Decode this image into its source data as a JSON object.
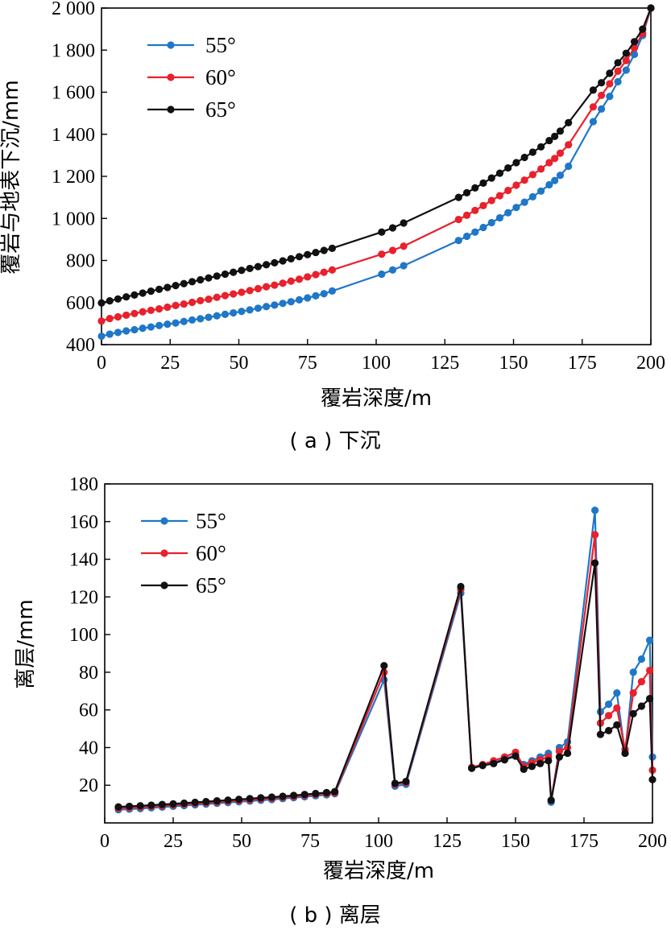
{
  "chart_data": [
    {
      "type": "line",
      "caption": "( a ) 下沉",
      "xlabel": "覆岩深度/m",
      "ylabel": "覆岩与地表下沉/mm",
      "xlim": [
        0,
        200
      ],
      "ylim": [
        400,
        2000
      ],
      "xticks": [
        0,
        25,
        50,
        75,
        100,
        125,
        150,
        175,
        200
      ],
      "xtick_labels": [
        "0",
        "25",
        "50",
        "75",
        "100",
        "125",
        "150",
        "175",
        "200"
      ],
      "yticks": [
        400,
        600,
        800,
        1000,
        1200,
        1400,
        1600,
        1800,
        2000
      ],
      "ytick_labels": [
        "400",
        "600",
        "800",
        "1 000",
        "1 200",
        "1 400",
        "1 600",
        "1 800",
        "2 000"
      ],
      "legend_position": "top-left",
      "grid": false,
      "series": [
        {
          "name": "55°",
          "color": "#1f77c8",
          "x": [
            0,
            3,
            6,
            9,
            12,
            15,
            18,
            21,
            24,
            27,
            30,
            33,
            36,
            39,
            42,
            45,
            48,
            51,
            54,
            57,
            60,
            63,
            66,
            69,
            72,
            75,
            78,
            81,
            84,
            102,
            106,
            110,
            130,
            133,
            136,
            139,
            142,
            145,
            148,
            151,
            154,
            157,
            160,
            163,
            165,
            167,
            170,
            179,
            182,
            185,
            188,
            191,
            194,
            197,
            200
          ],
          "y": [
            440,
            450,
            458,
            465,
            471,
            478,
            484,
            491,
            497,
            503,
            510,
            517,
            523,
            530,
            537,
            544,
            551,
            558,
            565,
            573,
            581,
            588,
            596,
            604,
            613,
            622,
            632,
            642,
            655,
            735,
            755,
            775,
            895,
            915,
            935,
            957,
            980,
            1003,
            1027,
            1052,
            1077,
            1103,
            1130,
            1160,
            1180,
            1205,
            1248,
            1460,
            1520,
            1580,
            1650,
            1705,
            1780,
            1870,
            2000
          ]
        },
        {
          "name": "60°",
          "color": "#e8212c",
          "x": [
            0,
            3,
            6,
            9,
            12,
            15,
            18,
            21,
            24,
            27,
            30,
            33,
            36,
            39,
            42,
            45,
            48,
            51,
            54,
            57,
            60,
            63,
            66,
            69,
            72,
            75,
            78,
            81,
            84,
            102,
            106,
            110,
            130,
            133,
            136,
            139,
            142,
            145,
            148,
            151,
            154,
            157,
            160,
            163,
            165,
            167,
            170,
            179,
            182,
            185,
            188,
            191,
            194,
            197,
            200
          ],
          "y": [
            512,
            524,
            532,
            540,
            548,
            556,
            563,
            570,
            578,
            586,
            593,
            601,
            609,
            616,
            625,
            633,
            641,
            649,
            657,
            666,
            675,
            683,
            692,
            702,
            711,
            722,
            733,
            744,
            755,
            830,
            848,
            868,
            995,
            1015,
            1038,
            1061,
            1085,
            1108,
            1133,
            1158,
            1182,
            1208,
            1235,
            1265,
            1285,
            1310,
            1350,
            1530,
            1585,
            1640,
            1700,
            1750,
            1810,
            1880,
            2000
          ]
        },
        {
          "name": "65°",
          "color": "#111111",
          "x": [
            0,
            3,
            6,
            9,
            12,
            15,
            18,
            21,
            24,
            27,
            30,
            33,
            36,
            39,
            42,
            45,
            48,
            51,
            54,
            57,
            60,
            63,
            66,
            69,
            72,
            75,
            78,
            81,
            84,
            102,
            106,
            110,
            130,
            133,
            136,
            139,
            142,
            145,
            148,
            151,
            154,
            157,
            160,
            163,
            165,
            167,
            170,
            179,
            182,
            185,
            188,
            191,
            194,
            197,
            200
          ],
          "y": [
            598,
            608,
            617,
            627,
            636,
            645,
            654,
            663,
            672,
            681,
            690,
            699,
            708,
            717,
            726,
            735,
            744,
            753,
            762,
            771,
            780,
            789,
            798,
            808,
            818,
            828,
            838,
            848,
            858,
            935,
            955,
            978,
            1100,
            1122,
            1145,
            1168,
            1192,
            1215,
            1240,
            1265,
            1290,
            1315,
            1340,
            1370,
            1390,
            1415,
            1455,
            1610,
            1645,
            1690,
            1740,
            1785,
            1840,
            1900,
            2000
          ]
        }
      ]
    },
    {
      "type": "line",
      "caption": "( b ) 离层",
      "xlabel": "覆岩深度/m",
      "ylabel": "离层/mm",
      "xlim": [
        0,
        200
      ],
      "ylim": [
        0,
        180
      ],
      "xticks": [
        0,
        25,
        50,
        75,
        100,
        125,
        150,
        175,
        200
      ],
      "xtick_labels": [
        "0",
        "25",
        "50",
        "75",
        "100",
        "125",
        "150",
        "175",
        "200"
      ],
      "yticks": [
        20,
        40,
        60,
        80,
        100,
        120,
        140,
        160,
        180
      ],
      "ytick_labels": [
        "20",
        "40",
        "60",
        "80",
        "100",
        "120",
        "140",
        "160",
        "180"
      ],
      "legend_position": "top-left",
      "grid": false,
      "series": [
        {
          "name": "55°",
          "color": "#1f77c8",
          "x": [
            5,
            9,
            13,
            17,
            21,
            25,
            29,
            33,
            37,
            41,
            45,
            49,
            53,
            57,
            61,
            65,
            69,
            73,
            77,
            81,
            84,
            102,
            106,
            110,
            130,
            134,
            138,
            142,
            146,
            150,
            153,
            156,
            159,
            162,
            163,
            166,
            169,
            179,
            181,
            184,
            187,
            190,
            193,
            196,
            199,
            200
          ],
          "y": [
            7,
            7.3,
            7.6,
            8,
            8.4,
            8.8,
            9.2,
            9.6,
            10,
            10.4,
            10.8,
            11.2,
            11.6,
            12,
            12.4,
            12.9,
            13.4,
            13.9,
            14.4,
            14.9,
            15.5,
            76,
            19.5,
            20.5,
            122,
            29,
            30.5,
            32,
            34,
            36,
            31,
            33,
            35,
            37,
            11,
            40,
            43,
            166,
            59,
            63,
            69,
            37,
            80,
            87,
            97,
            35
          ],
          "labels": []
        },
        {
          "name": "60°",
          "color": "#e8212c",
          "x": [
            5,
            9,
            13,
            17,
            21,
            25,
            29,
            33,
            37,
            41,
            45,
            49,
            53,
            57,
            61,
            65,
            69,
            73,
            77,
            81,
            84,
            102,
            106,
            110,
            130,
            134,
            138,
            142,
            146,
            150,
            153,
            156,
            159,
            162,
            163,
            166,
            169,
            179,
            181,
            184,
            187,
            190,
            193,
            196,
            199,
            200
          ],
          "y": [
            7.8,
            8.1,
            8.4,
            8.8,
            9.1,
            9.5,
            9.9,
            10.3,
            10.7,
            11.1,
            11.5,
            11.9,
            12.3,
            12.7,
            13.1,
            13.6,
            14.1,
            14.6,
            15.1,
            15.6,
            16,
            80,
            20.5,
            21.5,
            124,
            29.5,
            31,
            33,
            35,
            37.5,
            30,
            32,
            33.5,
            35,
            12,
            38,
            40,
            153,
            53,
            57,
            61,
            39,
            69,
            75,
            81,
            28
          ]
        },
        {
          "name": "65°",
          "color": "#111111",
          "x": [
            5,
            9,
            13,
            17,
            21,
            25,
            29,
            33,
            37,
            41,
            45,
            49,
            53,
            57,
            61,
            65,
            69,
            73,
            77,
            81,
            84,
            102,
            106,
            110,
            130,
            134,
            138,
            142,
            146,
            150,
            153,
            156,
            159,
            162,
            163,
            166,
            169,
            179,
            181,
            184,
            187,
            190,
            193,
            196,
            199,
            200
          ],
          "y": [
            8.5,
            8.8,
            9.1,
            9.4,
            9.8,
            10.1,
            10.5,
            10.9,
            11.3,
            11.7,
            12.1,
            12.5,
            12.9,
            13.3,
            13.7,
            14.1,
            14.6,
            15.1,
            15.6,
            16.1,
            16.6,
            83.5,
            21,
            22,
            125.5,
            29,
            30.5,
            31.5,
            33.5,
            35.5,
            28.5,
            30,
            31.5,
            33,
            12,
            35,
            37,
            138,
            47,
            49,
            52,
            37,
            58,
            62,
            66,
            23
          ]
        }
      ]
    }
  ]
}
